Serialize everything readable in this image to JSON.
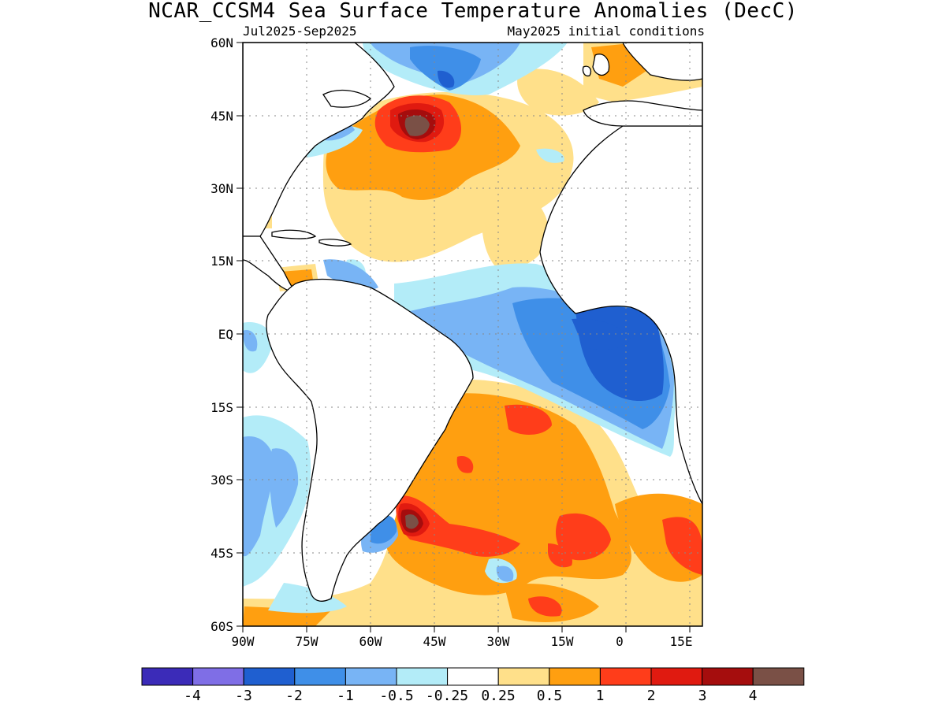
{
  "title": "NCAR_CCSM4 Sea Surface Temperature Anomalies (DecC)",
  "subtitle_left": "Jul2025-Sep2025",
  "subtitle_right": "May2025 initial conditions",
  "y_ticks": [
    "60N",
    "45N",
    "30N",
    "15N",
    "EQ",
    "15S",
    "30S",
    "45S",
    "60S"
  ],
  "x_ticks": [
    "90W",
    "75W",
    "60W",
    "45W",
    "30W",
    "15W",
    "0",
    "15E"
  ],
  "colorbar": {
    "colors": [
      "#3b2bb8",
      "#7f6ee6",
      "#1f5fd0",
      "#3f8fe8",
      "#78b4f5",
      "#b3ecf8",
      "#ffffff",
      "#ffe08a",
      "#ff9f10",
      "#ff3d1a",
      "#e01a10",
      "#a50d0d",
      "#7a5046"
    ],
    "labels": [
      "-4",
      "-3",
      "-2",
      "-1",
      "-0.5",
      "-0.25",
      "0.25",
      "0.5",
      "1",
      "2",
      "3",
      "4"
    ]
  },
  "palette": {
    "land_outline": "#000000",
    "grid": "#888888"
  }
}
